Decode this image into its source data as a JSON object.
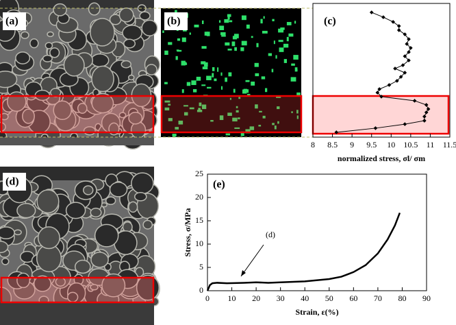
{
  "panel_labels": [
    "(a)",
    "(b)",
    "(d)"
  ],
  "chart_data": [
    {
      "type": "line",
      "panel": "(c)",
      "xlabel": "normalized stress, σl/ σm",
      "xlim": [
        8,
        11.5
      ],
      "xticks": [
        8,
        8.5,
        9,
        9.5,
        10,
        10.5,
        11,
        11.5
      ],
      "ylim": [
        0,
        1
      ],
      "color": "#000",
      "x": [
        9.5,
        9.8,
        10.05,
        10.2,
        10.2,
        10.35,
        10.45,
        10.4,
        10.5,
        10.45,
        10.35,
        10.45,
        10.3,
        10.1,
        10.35,
        10.25,
        10.15,
        9.95,
        9.7,
        9.65,
        9.75,
        10.6,
        10.9,
        10.95,
        10.9,
        10.85,
        10.85,
        10.35,
        9.6,
        8.6
      ],
      "y": [
        0.933,
        0.897,
        0.862,
        0.831,
        0.8,
        0.769,
        0.733,
        0.697,
        0.667,
        0.636,
        0.605,
        0.574,
        0.538,
        0.513,
        0.482,
        0.451,
        0.421,
        0.39,
        0.359,
        0.333,
        0.303,
        0.272,
        0.241,
        0.21,
        0.185,
        0.154,
        0.123,
        0.097,
        0.067,
        0.036
      ]
    },
    {
      "type": "line",
      "panel": "(e)",
      "xlabel": "Strain, ε(%)",
      "ylabel": "Stress, σ/MPa",
      "annotation": "(d)",
      "xlim": [
        0,
        90
      ],
      "xticks": [
        0,
        10,
        20,
        30,
        40,
        50,
        60,
        70,
        80,
        90
      ],
      "ylim": [
        0,
        25
      ],
      "yticks": [
        0,
        5,
        10,
        15,
        20,
        25
      ],
      "color": "#000",
      "x": [
        0,
        1,
        2,
        4,
        8,
        15,
        20,
        25,
        30,
        40,
        50,
        55,
        60,
        65,
        70,
        74,
        77,
        79
      ],
      "y": [
        0,
        1.2,
        1.6,
        1.7,
        1.6,
        1.7,
        1.8,
        1.7,
        1.8,
        2.0,
        2.5,
        3.0,
        4.0,
        5.5,
        8.0,
        11,
        14,
        16.7
      ]
    }
  ]
}
